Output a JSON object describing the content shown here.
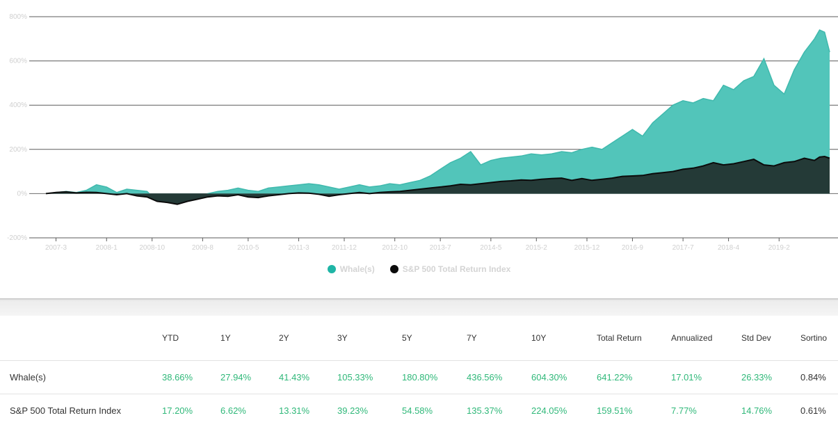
{
  "chart_data": {
    "type": "area",
    "y_ticks": [
      "800%",
      "600%",
      "400%",
      "200%",
      "0%",
      "-200%"
    ],
    "y_values": [
      800,
      600,
      400,
      200,
      0,
      -200
    ],
    "ylim": [
      -200,
      800
    ],
    "x_ticks": [
      "2007-3",
      "2008-1",
      "2008-10",
      "2009-8",
      "2010-5",
      "2011-3",
      "2011-12",
      "2012-10",
      "2013-7",
      "2014-5",
      "2015-2",
      "2015-12",
      "2016-9",
      "2017-7",
      "2018-4",
      "2019-2"
    ],
    "x_start": "2007-1",
    "x_end": "2019-12",
    "series": [
      {
        "name": "Whale(s)",
        "color": "#52c5ba",
        "points": [
          [
            "2007-1",
            0
          ],
          [
            "2007-3",
            5
          ],
          [
            "2007-5",
            10
          ],
          [
            "2007-7",
            5
          ],
          [
            "2007-9",
            15
          ],
          [
            "2007-11",
            40
          ],
          [
            "2008-1",
            30
          ],
          [
            "2008-3",
            5
          ],
          [
            "2008-5",
            20
          ],
          [
            "2008-7",
            15
          ],
          [
            "2008-9",
            10
          ],
          [
            "2008-11",
            -35
          ],
          [
            "2009-1",
            -40
          ],
          [
            "2009-3",
            -45
          ],
          [
            "2009-5",
            -35
          ],
          [
            "2009-7",
            -25
          ],
          [
            "2009-9",
            0
          ],
          [
            "2009-11",
            10
          ],
          [
            "2010-1",
            15
          ],
          [
            "2010-3",
            25
          ],
          [
            "2010-5",
            15
          ],
          [
            "2010-7",
            10
          ],
          [
            "2010-9",
            25
          ],
          [
            "2010-11",
            30
          ],
          [
            "2011-1",
            35
          ],
          [
            "2011-3",
            40
          ],
          [
            "2011-5",
            45
          ],
          [
            "2011-7",
            40
          ],
          [
            "2011-9",
            30
          ],
          [
            "2011-11",
            20
          ],
          [
            "2012-1",
            30
          ],
          [
            "2012-3",
            40
          ],
          [
            "2012-5",
            30
          ],
          [
            "2012-7",
            35
          ],
          [
            "2012-9",
            45
          ],
          [
            "2012-11",
            40
          ],
          [
            "2013-1",
            50
          ],
          [
            "2013-3",
            60
          ],
          [
            "2013-5",
            80
          ],
          [
            "2013-7",
            110
          ],
          [
            "2013-9",
            140
          ],
          [
            "2013-11",
            160
          ],
          [
            "2014-1",
            190
          ],
          [
            "2014-3",
            130
          ],
          [
            "2014-5",
            150
          ],
          [
            "2014-7",
            160
          ],
          [
            "2014-9",
            165
          ],
          [
            "2014-11",
            170
          ],
          [
            "2015-1",
            180
          ],
          [
            "2015-3",
            175
          ],
          [
            "2015-5",
            180
          ],
          [
            "2015-7",
            190
          ],
          [
            "2015-9",
            185
          ],
          [
            "2015-11",
            200
          ],
          [
            "2016-1",
            210
          ],
          [
            "2016-3",
            200
          ],
          [
            "2016-5",
            230
          ],
          [
            "2016-7",
            260
          ],
          [
            "2016-9",
            290
          ],
          [
            "2016-11",
            260
          ],
          [
            "2017-1",
            320
          ],
          [
            "2017-3",
            360
          ],
          [
            "2017-5",
            400
          ],
          [
            "2017-7",
            420
          ],
          [
            "2017-9",
            410
          ],
          [
            "2017-11",
            430
          ],
          [
            "2018-1",
            420
          ],
          [
            "2018-3",
            490
          ],
          [
            "2018-5",
            470
          ],
          [
            "2018-7",
            510
          ],
          [
            "2018-9",
            530
          ],
          [
            "2018-11",
            610
          ],
          [
            "2019-1",
            490
          ],
          [
            "2019-3",
            450
          ],
          [
            "2019-5",
            560
          ],
          [
            "2019-7",
            640
          ],
          [
            "2019-9",
            700
          ],
          [
            "2019-10",
            740
          ],
          [
            "2019-11",
            730
          ],
          [
            "2019-12",
            640
          ]
        ]
      },
      {
        "name": "S&P 500 Total Return Index",
        "color": "#101010",
        "points": [
          [
            "2007-1",
            0
          ],
          [
            "2007-3",
            5
          ],
          [
            "2007-5",
            8
          ],
          [
            "2007-7",
            3
          ],
          [
            "2007-9",
            6
          ],
          [
            "2007-11",
            5
          ],
          [
            "2008-1",
            0
          ],
          [
            "2008-3",
            -5
          ],
          [
            "2008-5",
            0
          ],
          [
            "2008-7",
            -10
          ],
          [
            "2008-9",
            -15
          ],
          [
            "2008-11",
            -35
          ],
          [
            "2009-1",
            -40
          ],
          [
            "2009-3",
            -48
          ],
          [
            "2009-5",
            -35
          ],
          [
            "2009-7",
            -25
          ],
          [
            "2009-9",
            -15
          ],
          [
            "2009-11",
            -10
          ],
          [
            "2010-1",
            -12
          ],
          [
            "2010-3",
            -5
          ],
          [
            "2010-5",
            -15
          ],
          [
            "2010-7",
            -18
          ],
          [
            "2010-9",
            -10
          ],
          [
            "2010-11",
            -5
          ],
          [
            "2011-1",
            0
          ],
          [
            "2011-3",
            3
          ],
          [
            "2011-5",
            2
          ],
          [
            "2011-7",
            -3
          ],
          [
            "2011-9",
            -12
          ],
          [
            "2011-11",
            -5
          ],
          [
            "2012-1",
            0
          ],
          [
            "2012-3",
            5
          ],
          [
            "2012-5",
            0
          ],
          [
            "2012-7",
            5
          ],
          [
            "2012-9",
            8
          ],
          [
            "2012-11",
            10
          ],
          [
            "2013-1",
            15
          ],
          [
            "2013-3",
            20
          ],
          [
            "2013-5",
            25
          ],
          [
            "2013-7",
            30
          ],
          [
            "2013-9",
            35
          ],
          [
            "2013-11",
            42
          ],
          [
            "2014-1",
            40
          ],
          [
            "2014-3",
            45
          ],
          [
            "2014-5",
            50
          ],
          [
            "2014-7",
            55
          ],
          [
            "2014-9",
            58
          ],
          [
            "2014-11",
            62
          ],
          [
            "2015-1",
            60
          ],
          [
            "2015-3",
            65
          ],
          [
            "2015-5",
            68
          ],
          [
            "2015-7",
            70
          ],
          [
            "2015-9",
            60
          ],
          [
            "2015-11",
            68
          ],
          [
            "2016-1",
            60
          ],
          [
            "2016-3",
            65
          ],
          [
            "2016-5",
            70
          ],
          [
            "2016-7",
            78
          ],
          [
            "2016-9",
            80
          ],
          [
            "2016-11",
            82
          ],
          [
            "2017-1",
            90
          ],
          [
            "2017-3",
            95
          ],
          [
            "2017-5",
            100
          ],
          [
            "2017-7",
            110
          ],
          [
            "2017-9",
            115
          ],
          [
            "2017-11",
            125
          ],
          [
            "2018-1",
            140
          ],
          [
            "2018-3",
            130
          ],
          [
            "2018-5",
            135
          ],
          [
            "2018-7",
            145
          ],
          [
            "2018-9",
            155
          ],
          [
            "2018-11",
            130
          ],
          [
            "2019-1",
            125
          ],
          [
            "2019-3",
            140
          ],
          [
            "2019-5",
            145
          ],
          [
            "2019-7",
            160
          ],
          [
            "2019-9",
            150
          ],
          [
            "2019-10",
            165
          ],
          [
            "2019-11",
            168
          ],
          [
            "2019-12",
            160
          ]
        ]
      }
    ],
    "grid": true,
    "legend": "bottom-center"
  },
  "legend": [
    {
      "label": "Whale(s)",
      "color": "#1fb5a6"
    },
    {
      "label": "S&P 500 Total Return Index",
      "color": "#0b0b0b"
    }
  ],
  "table": {
    "headers": [
      "YTD",
      "1Y",
      "2Y",
      "3Y",
      "5Y",
      "7Y",
      "10Y",
      "Total Return",
      "Annualized",
      "Std Dev",
      "Sortino"
    ],
    "rows": [
      {
        "name": "Whale(s)",
        "values": [
          "38.66%",
          "27.94%",
          "41.43%",
          "105.33%",
          "180.80%",
          "436.56%",
          "604.30%",
          "641.22%",
          "17.01%",
          "26.33%",
          "0.84%"
        ]
      },
      {
        "name": "S&P 500 Total Return Index",
        "values": [
          "17.20%",
          "6.62%",
          "13.31%",
          "39.23%",
          "54.58%",
          "135.37%",
          "224.05%",
          "159.51%",
          "7.77%",
          "14.76%",
          "0.61%"
        ]
      }
    ]
  }
}
